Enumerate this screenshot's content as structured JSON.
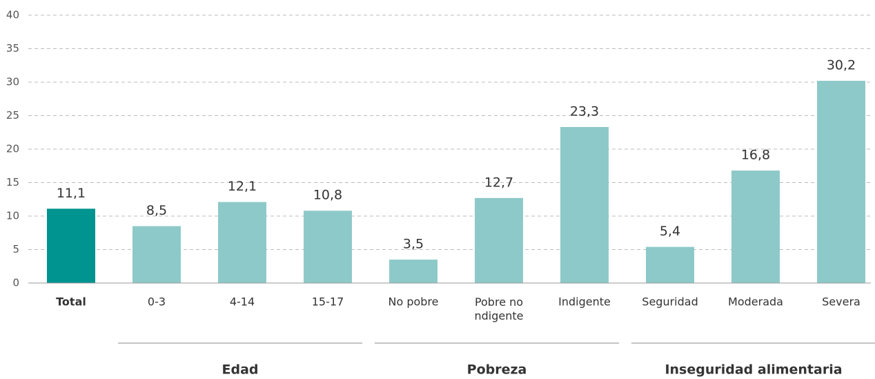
{
  "chart_data": {
    "type": "bar",
    "categories": [
      "Total",
      "0-3",
      "4-14",
      "15-17",
      "No pobre",
      "Pobre no\nndigente",
      "Indigente",
      "Seguridad",
      "Moderada",
      "Severa"
    ],
    "values": [
      11.1,
      8.5,
      12.1,
      10.8,
      3.5,
      12.7,
      23.3,
      5.4,
      16.8,
      30.2
    ],
    "value_labels": [
      "11,1",
      "8,5",
      "12,1",
      "10,8",
      "3,5",
      "12,7",
      "23,3",
      "5,4",
      "16,8",
      "30,2"
    ],
    "colors": [
      "#009490",
      "#8ec9c9",
      "#8ec9c9",
      "#8ec9c9",
      "#8ec9c9",
      "#8ec9c9",
      "#8ec9c9",
      "#8ec9c9",
      "#8ec9c9",
      "#8ec9c9"
    ],
    "bold_categories": [
      "Total"
    ],
    "groups": [
      {
        "label": "Edad",
        "categories": [
          "0-3",
          "4-14",
          "15-17"
        ]
      },
      {
        "label": "Pobreza",
        "categories": [
          "No pobre",
          "Pobre no\nndigente",
          "Indigente"
        ]
      },
      {
        "label": "Inseguridad alimentaria",
        "categories": [
          "Seguridad",
          "Moderada",
          "Severa"
        ]
      }
    ],
    "ylim": [
      0,
      40
    ],
    "yticks": [
      0,
      5,
      10,
      15,
      20,
      25,
      30,
      35,
      40
    ],
    "grid": true
  }
}
